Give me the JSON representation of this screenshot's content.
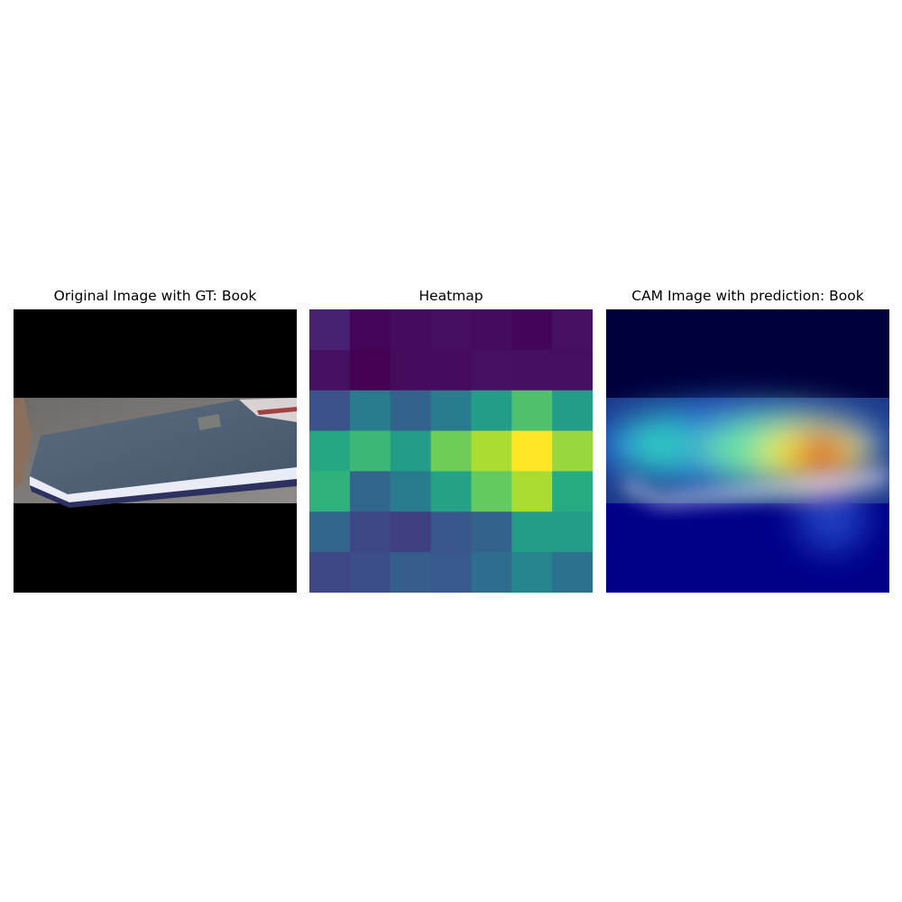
{
  "panels": {
    "original": {
      "title": "Original Image with GT: Book",
      "ground_truth": "Book"
    },
    "heatmap": {
      "title": "Heatmap"
    },
    "cam": {
      "title": "CAM Image with prediction: Book",
      "prediction": "Book"
    }
  },
  "chart_data": {
    "type": "heatmap",
    "title": "Heatmap",
    "rows": 7,
    "cols": 7,
    "colormap": "viridis",
    "values": [
      [
        0.12,
        0.02,
        0.04,
        0.05,
        0.04,
        0.01,
        0.06
      ],
      [
        0.06,
        0.0,
        0.04,
        0.04,
        0.06,
        0.05,
        0.05
      ],
      [
        0.25,
        0.42,
        0.32,
        0.42,
        0.55,
        0.72,
        0.55
      ],
      [
        0.6,
        0.68,
        0.55,
        0.78,
        0.88,
        1.0,
        0.85
      ],
      [
        0.65,
        0.33,
        0.42,
        0.58,
        0.76,
        0.88,
        0.62
      ],
      [
        0.33,
        0.22,
        0.2,
        0.27,
        0.32,
        0.55,
        0.55
      ],
      [
        0.22,
        0.24,
        0.3,
        0.28,
        0.36,
        0.45,
        0.38
      ]
    ],
    "grid": false
  }
}
